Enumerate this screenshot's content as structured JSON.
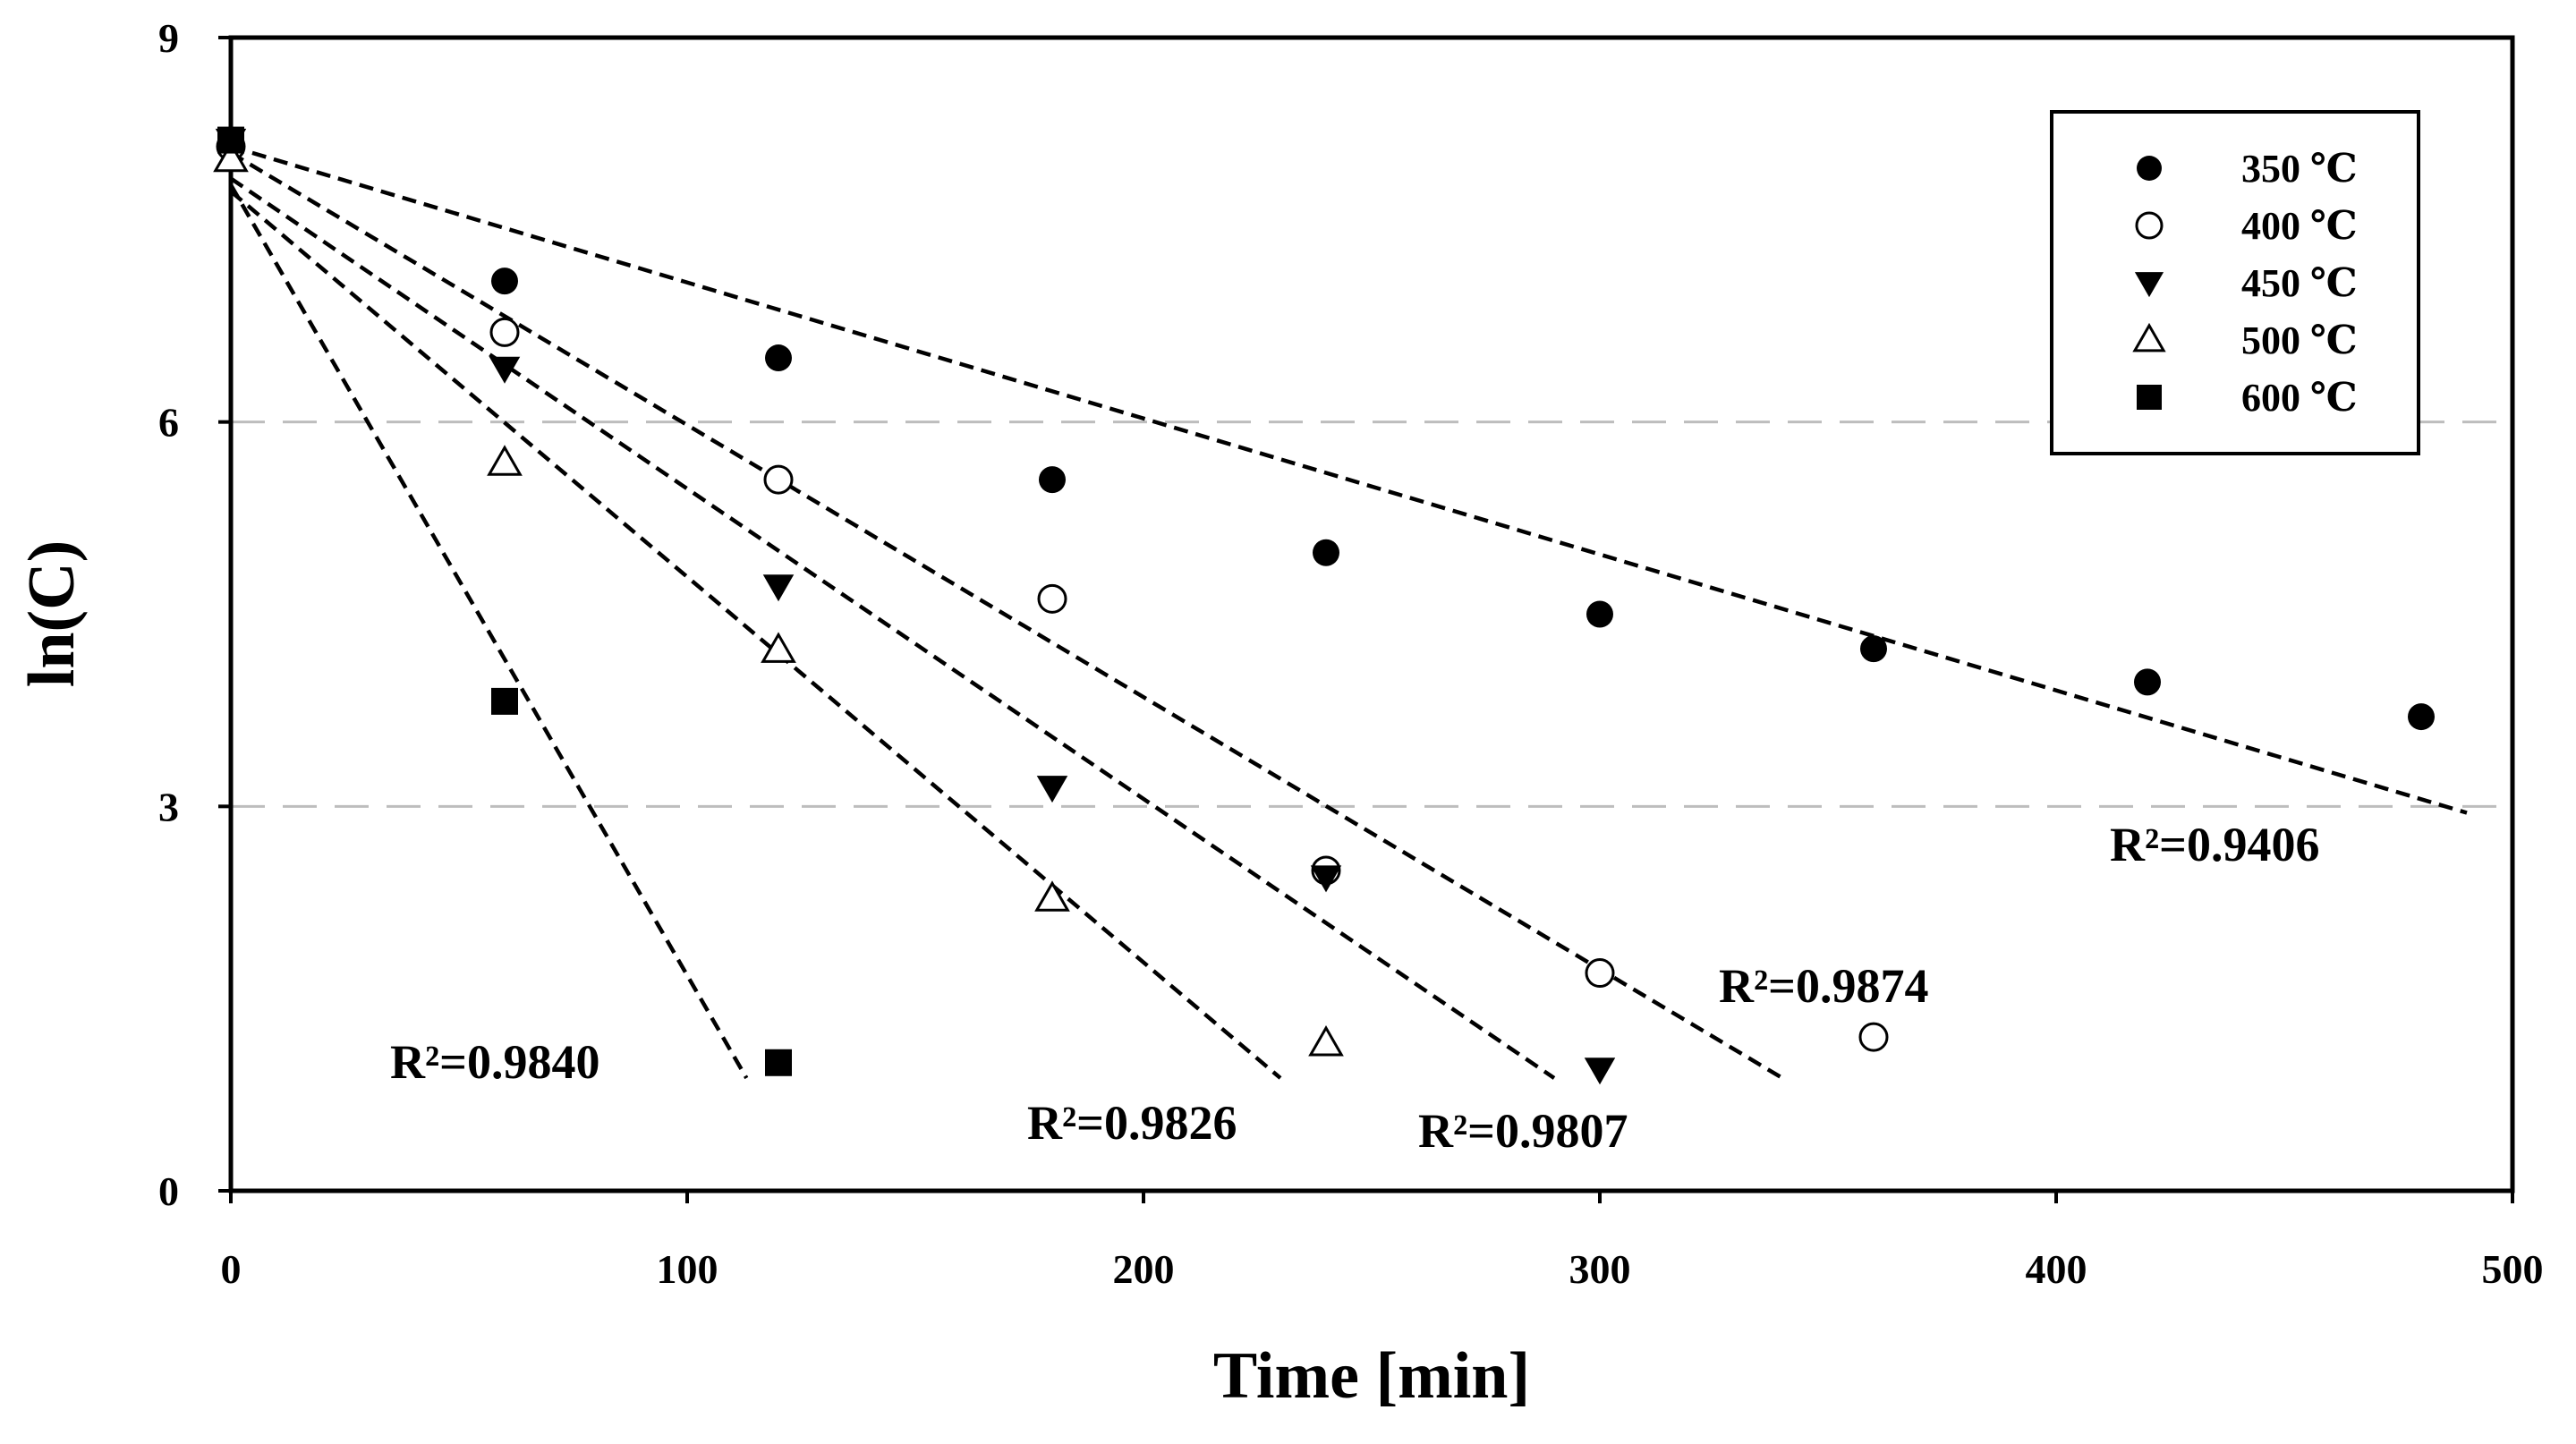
{
  "chart_data": {
    "type": "scatter",
    "title": "",
    "xlabel": "Time [min]",
    "ylabel": "ln(C)",
    "xlim": [
      0,
      500
    ],
    "ylim": [
      0,
      9
    ],
    "xticks": [
      "0",
      "100",
      "200",
      "300",
      "400",
      "500"
    ],
    "yticks": [
      "0",
      "3",
      "6",
      "9"
    ],
    "gridlines": [
      3,
      6
    ],
    "legend_position": "top-right",
    "series": [
      {
        "name": "350 ℃",
        "marker": "filled-circle",
        "x": [
          0,
          60,
          120,
          180,
          240,
          300,
          360,
          420,
          480
        ],
        "y": [
          8.2,
          7.1,
          6.5,
          5.55,
          4.98,
          4.5,
          4.23,
          3.97,
          3.7
        ],
        "fit": {
          "x": [
            0,
            490
          ],
          "y": [
            8.15,
            2.95
          ]
        },
        "r2": "R²=0.9406"
      },
      {
        "name": "400 ℃",
        "marker": "open-circle",
        "x": [
          0,
          60,
          120,
          180,
          240,
          300,
          360
        ],
        "y": [
          8.15,
          6.7,
          5.55,
          4.62,
          2.5,
          1.7,
          1.2
        ],
        "fit": {
          "x": [
            0,
            340
          ],
          "y": [
            8.1,
            0.88
          ]
        },
        "r2": "R²=0.9874"
      },
      {
        "name": "450 ℃",
        "marker": "filled-triangle-down",
        "x": [
          0,
          60,
          120,
          180,
          240,
          300
        ],
        "y": [
          8.2,
          6.42,
          4.72,
          3.15,
          2.45,
          0.95
        ],
        "fit": {
          "x": [
            0,
            290
          ],
          "y": [
            7.9,
            0.88
          ]
        },
        "r2": "R²=0.9807"
      },
      {
        "name": "500 ℃",
        "marker": "open-triangle-up",
        "x": [
          0,
          60,
          120,
          180,
          240
        ],
        "y": [
          8.05,
          5.68,
          4.22,
          2.28,
          1.15
        ],
        "fit": {
          "x": [
            0,
            230
          ],
          "y": [
            7.8,
            0.88
          ]
        },
        "r2": "R²=0.9826"
      },
      {
        "name": "600 ℃",
        "marker": "filled-square",
        "x": [
          0,
          60,
          120
        ],
        "y": [
          8.2,
          3.82,
          1.0
        ],
        "fit": {
          "x": [
            0,
            113
          ],
          "y": [
            7.85,
            0.88
          ]
        },
        "r2": "R²=0.9840"
      }
    ]
  }
}
